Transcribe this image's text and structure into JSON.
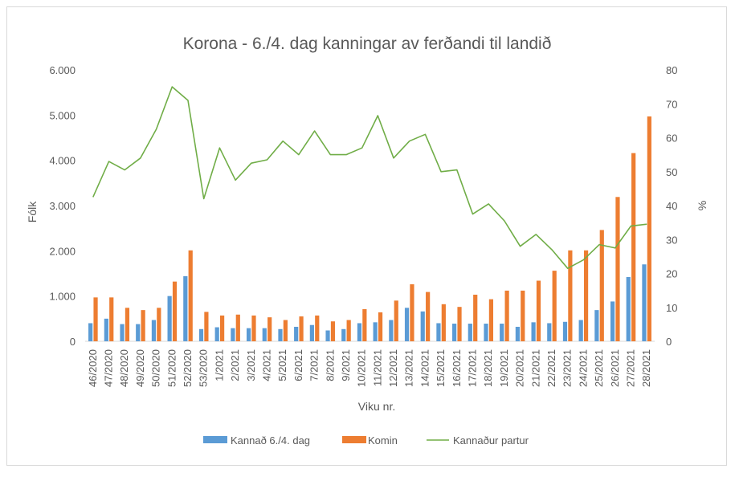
{
  "chart_data": {
    "type": "bar",
    "title": "Korona - 6./4. dag kanningar av ferðandi til landið",
    "xlabel": "Viku nr.",
    "ylabel": "Fólk",
    "y2label": "%",
    "ylim": [
      0,
      6000
    ],
    "y2lim": [
      0,
      80
    ],
    "y_ticks": [
      "0",
      "1.000",
      "2.000",
      "3.000",
      "4.000",
      "5.000",
      "6.000"
    ],
    "y2_ticks": [
      "0",
      "10",
      "20",
      "30",
      "40",
      "50",
      "60",
      "70",
      "80"
    ],
    "categories": [
      "46/2020",
      "47/2020",
      "48/2020",
      "49/2020",
      "50/2020",
      "51/2020",
      "52/2020",
      "53/2020",
      "1/2021",
      "2/2021",
      "3/2021",
      "4/2021",
      "5/2021",
      "6/2021",
      "7/2021",
      "8/2021",
      "9/2021",
      "10/2021",
      "11/2021",
      "12/2021",
      "13/2021",
      "14/2021",
      "15/2021",
      "16/2021",
      "17/2021",
      "18/2021",
      "19/2021",
      "20/2021",
      "21/2021",
      "22/2021",
      "23/2021",
      "24/2021",
      "25/2021",
      "26/2021",
      "27/2021",
      "28/2021"
    ],
    "series": [
      {
        "name": "Kannað 6./4. dag",
        "kind": "bar",
        "color": "#5b9bd5",
        "axis": "left",
        "values": [
          400,
          500,
          380,
          380,
          470,
          1000,
          1440,
          270,
          310,
          290,
          290,
          290,
          270,
          320,
          360,
          240,
          270,
          400,
          420,
          470,
          740,
          660,
          400,
          390,
          390,
          390,
          390,
          320,
          420,
          400,
          430,
          470,
          690,
          880,
          1420,
          1700
        ]
      },
      {
        "name": "Komin",
        "kind": "bar",
        "color": "#ed7d31",
        "axis": "left",
        "values": [
          970,
          970,
          740,
          690,
          740,
          1320,
          2010,
          650,
          570,
          590,
          570,
          530,
          470,
          550,
          570,
          440,
          470,
          710,
          640,
          900,
          1260,
          1090,
          820,
          760,
          1030,
          930,
          1120,
          1120,
          1340,
          1560,
          2010,
          2010,
          2460,
          3190,
          4160,
          4970
        ]
      },
      {
        "name": "Kannaður partur",
        "kind": "line",
        "color": "#70ad47",
        "axis": "right",
        "values": [
          42.5,
          53,
          50.5,
          54,
          62.5,
          75,
          71,
          42,
          57,
          47.5,
          52.5,
          53.5,
          59,
          55,
          62,
          55,
          55,
          57,
          66.5,
          54,
          59,
          61,
          50,
          50.5,
          37.5,
          40.5,
          35.5,
          28,
          31.5,
          27,
          21.5,
          24,
          28.5,
          27.5,
          34,
          34.5
        ]
      }
    ]
  }
}
